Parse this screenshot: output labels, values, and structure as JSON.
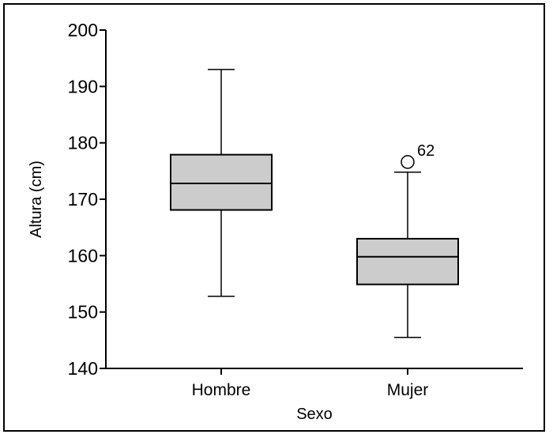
{
  "chart_data": {
    "type": "box",
    "xlabel": "Sexo",
    "ylabel": "Altura (cm)",
    "ylim": [
      140,
      200
    ],
    "yticks": [
      "140",
      "150",
      "160",
      "170",
      "180",
      "190",
      "200"
    ],
    "grid": false,
    "legend": "none",
    "box_fill": "#cccccc",
    "line_color": "#000000",
    "categories": [
      "Hombre",
      "Mujer"
    ],
    "boxes": [
      {
        "category": "Hombre",
        "whisker_low": 152.8,
        "q1": 168.1,
        "median": 172.8,
        "q3": 177.9,
        "whisker_high": 193.0,
        "outliers": []
      },
      {
        "category": "Mujer",
        "whisker_low": 145.5,
        "q1": 154.9,
        "median": 159.8,
        "q3": 163.0,
        "whisker_high": 174.8,
        "outliers": [
          {
            "value": 176.6,
            "label": "62"
          }
        ]
      }
    ]
  }
}
